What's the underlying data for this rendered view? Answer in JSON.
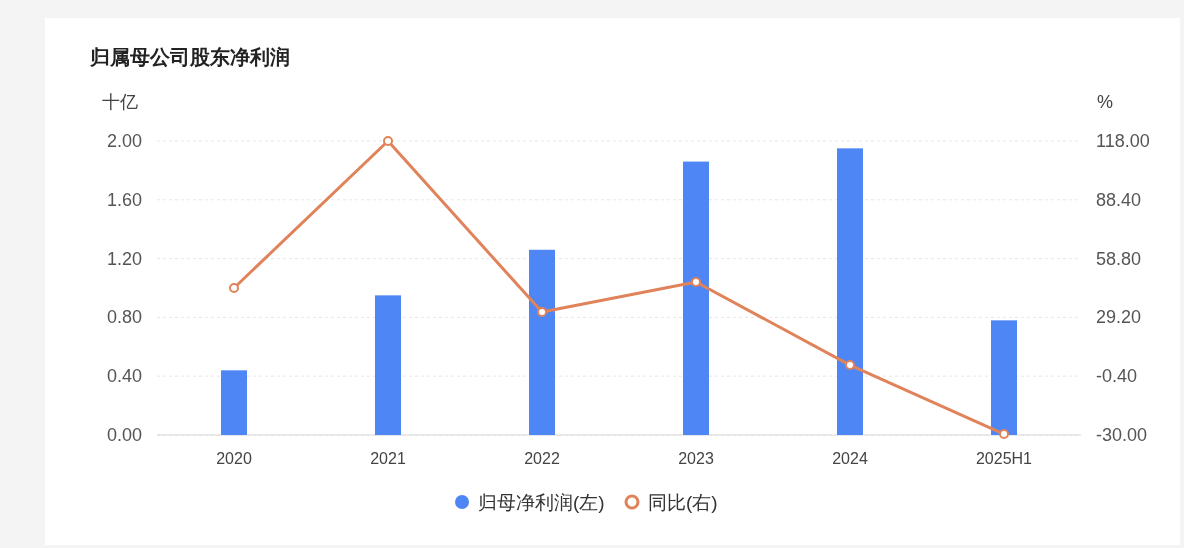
{
  "chart_data": {
    "type": "bar",
    "title": "归属母公司股东净利润",
    "ylabel": "十亿",
    "y2label": "%",
    "categories": [
      "2020",
      "2021",
      "2022",
      "2023",
      "2024",
      "2025H1"
    ],
    "series": [
      {
        "name": "归母净利润(左)",
        "color": "#4e86f5",
        "values": [
          0.44,
          0.95,
          1.26,
          1.86,
          1.95,
          0.78
        ]
      },
      {
        "name": "同比(右)",
        "type": "line",
        "axis": "y2",
        "color": "#e0835a",
        "marker": "circle",
        "values": [
          44.0,
          118.0,
          31.9,
          47.0,
          5.2,
          -29.5
        ]
      }
    ],
    "ylim": [
      0,
      2
    ],
    "yticks": [
      {
        "value": 0,
        "label": "0.00"
      },
      {
        "value": 0.4,
        "label": "0.40"
      },
      {
        "value": 0.8,
        "label": "0.80"
      },
      {
        "value": 1.2,
        "label": "1.20"
      },
      {
        "value": 1.6,
        "label": "1.60"
      },
      {
        "value": 2,
        "label": "2.00"
      }
    ],
    "y2lim": [
      -30,
      118
    ],
    "y2ticks": [
      {
        "value": -30,
        "label": "-30.00"
      },
      {
        "value": -0.4,
        "label": "-0.40"
      },
      {
        "value": 29.2,
        "label": "29.20"
      },
      {
        "value": 58.8,
        "label": "58.80"
      },
      {
        "value": 88.4,
        "label": "88.40"
      },
      {
        "value": 118,
        "label": "118.00"
      }
    ],
    "grid": "y",
    "legend": "bottom"
  }
}
